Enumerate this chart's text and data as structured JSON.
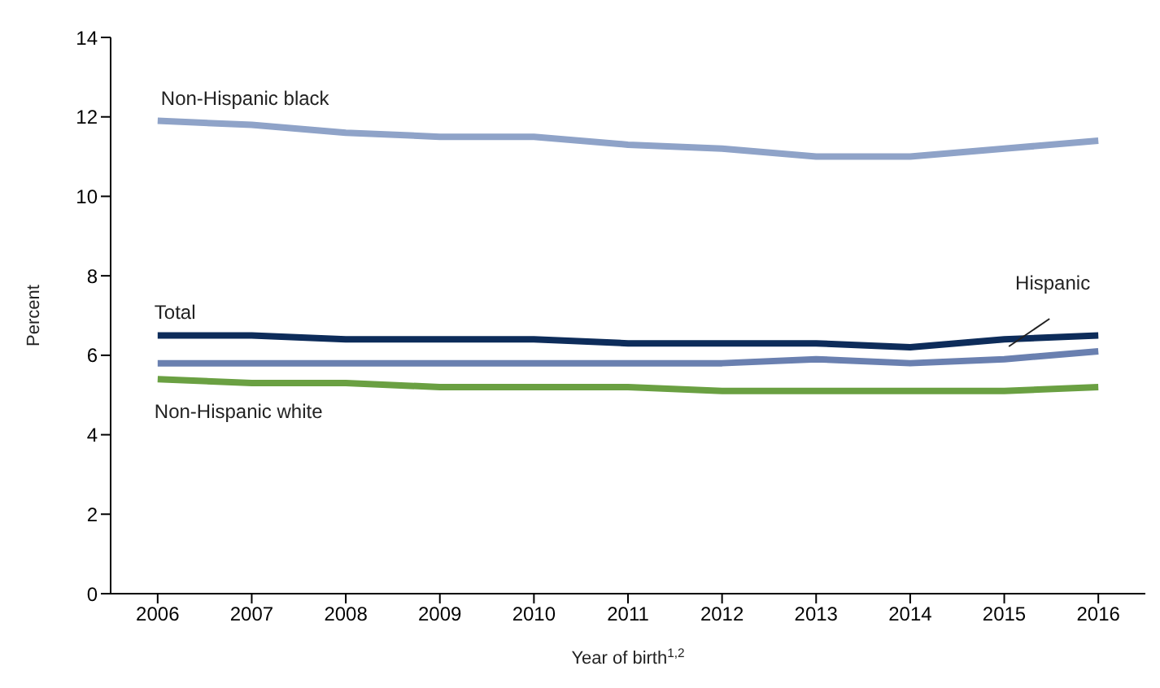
{
  "chart_data": {
    "type": "line",
    "xlabel": "Year of birth$^{1,2}$",
    "ylabel": "Percent",
    "x": [
      2006,
      2007,
      2008,
      2009,
      2010,
      2011,
      2012,
      2013,
      2014,
      2015,
      2016
    ],
    "xlim": [
      2005.5,
      2016.5
    ],
    "xticks": [
      2006,
      2007,
      2008,
      2009,
      2010,
      2011,
      2012,
      2013,
      2014,
      2015,
      2016
    ],
    "ylim": [
      0,
      14
    ],
    "yticks": [
      0,
      2,
      4,
      6,
      8,
      10,
      12,
      14
    ],
    "grid": false,
    "marker": "none",
    "line_style": "solid",
    "series": [
      {
        "name": "Non-Hispanic black",
        "color": "#8fa3c8",
        "values": [
          11.9,
          11.8,
          11.6,
          11.5,
          11.5,
          11.3,
          11.2,
          11.0,
          11.0,
          11.2,
          11.4
        ]
      },
      {
        "name": "Total",
        "color": "#0d2c5a",
        "values": [
          6.5,
          6.5,
          6.4,
          6.4,
          6.4,
          6.3,
          6.3,
          6.3,
          6.2,
          6.4,
          6.5
        ]
      },
      {
        "name": "Hispanic",
        "color": "#6a80b0",
        "values": [
          5.8,
          5.8,
          5.8,
          5.8,
          5.8,
          5.8,
          5.8,
          5.9,
          5.8,
          5.9,
          6.1
        ]
      },
      {
        "name": "Non-Hispanic white",
        "color": "#6aa042",
        "values": [
          5.4,
          5.3,
          5.3,
          5.2,
          5.2,
          5.2,
          5.1,
          5.1,
          5.1,
          5.1,
          5.2
        ]
      }
    ]
  }
}
